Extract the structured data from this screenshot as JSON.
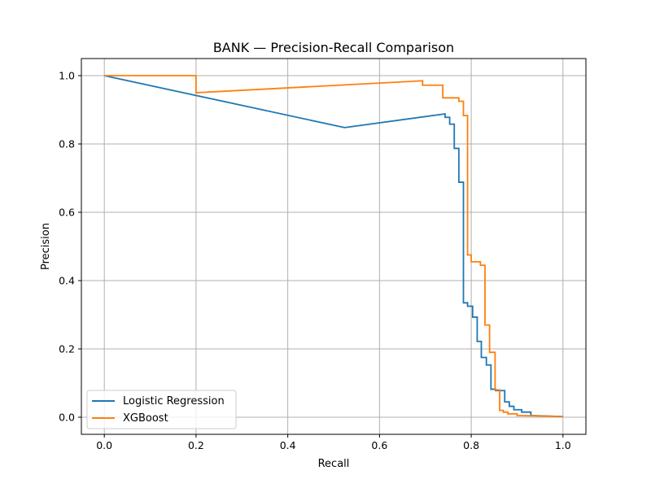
{
  "chart_data": {
    "type": "line",
    "title": "BANK — Precision-Recall Comparison",
    "xlabel": "Recall",
    "ylabel": "Precision",
    "xlim": [
      -0.05,
      1.05
    ],
    "ylim": [
      -0.05,
      1.05
    ],
    "xticks": [
      0.0,
      0.2,
      0.4,
      0.6,
      0.8,
      1.0
    ],
    "xtick_labels": [
      "0.0",
      "0.2",
      "0.4",
      "0.6",
      "0.8",
      "1.0"
    ],
    "yticks": [
      0.0,
      0.2,
      0.4,
      0.6,
      0.8,
      1.0
    ],
    "ytick_labels": [
      "0.0",
      "0.2",
      "0.4",
      "0.6",
      "0.8",
      "1.0"
    ],
    "grid": true,
    "legend_position": "lower-left",
    "series": [
      {
        "name": "Logistic Regression",
        "color": "#1f77b4",
        "x": [
          0.0,
          0.524,
          0.743,
          0.743,
          0.753,
          0.753,
          0.763,
          0.763,
          0.773,
          0.773,
          0.783,
          0.783,
          0.792,
          0.792,
          0.803,
          0.803,
          0.813,
          0.813,
          0.822,
          0.822,
          0.833,
          0.833,
          0.843,
          0.843,
          0.853,
          0.853,
          0.873,
          0.873,
          0.883,
          0.883,
          0.893,
          0.893,
          0.91,
          0.91,
          0.93,
          0.93,
          1.0
        ],
        "y": [
          1.0,
          0.848,
          0.888,
          0.878,
          0.878,
          0.858,
          0.858,
          0.787,
          0.787,
          0.688,
          0.688,
          0.335,
          0.335,
          0.325,
          0.325,
          0.293,
          0.293,
          0.222,
          0.222,
          0.175,
          0.175,
          0.153,
          0.153,
          0.082,
          0.082,
          0.078,
          0.078,
          0.045,
          0.045,
          0.032,
          0.032,
          0.022,
          0.022,
          0.015,
          0.015,
          0.005,
          0.002
        ]
      },
      {
        "name": "XGBoost",
        "color": "#ff7f0e",
        "x": [
          0.0,
          0.2,
          0.2,
          0.694,
          0.694,
          0.738,
          0.738,
          0.773,
          0.773,
          0.783,
          0.783,
          0.792,
          0.792,
          0.8,
          0.8,
          0.81,
          0.81,
          0.82,
          0.82,
          0.83,
          0.83,
          0.84,
          0.84,
          0.852,
          0.852,
          0.862,
          0.862,
          0.87,
          0.87,
          0.88,
          0.88,
          0.9,
          0.9,
          1.0
        ],
        "y": [
          1.0,
          1.0,
          0.95,
          0.985,
          0.972,
          0.972,
          0.935,
          0.935,
          0.925,
          0.925,
          0.883,
          0.883,
          0.475,
          0.475,
          0.455,
          0.455,
          0.455,
          0.455,
          0.445,
          0.445,
          0.27,
          0.27,
          0.19,
          0.19,
          0.08,
          0.08,
          0.02,
          0.02,
          0.015,
          0.015,
          0.01,
          0.01,
          0.005,
          0.002
        ]
      }
    ]
  }
}
